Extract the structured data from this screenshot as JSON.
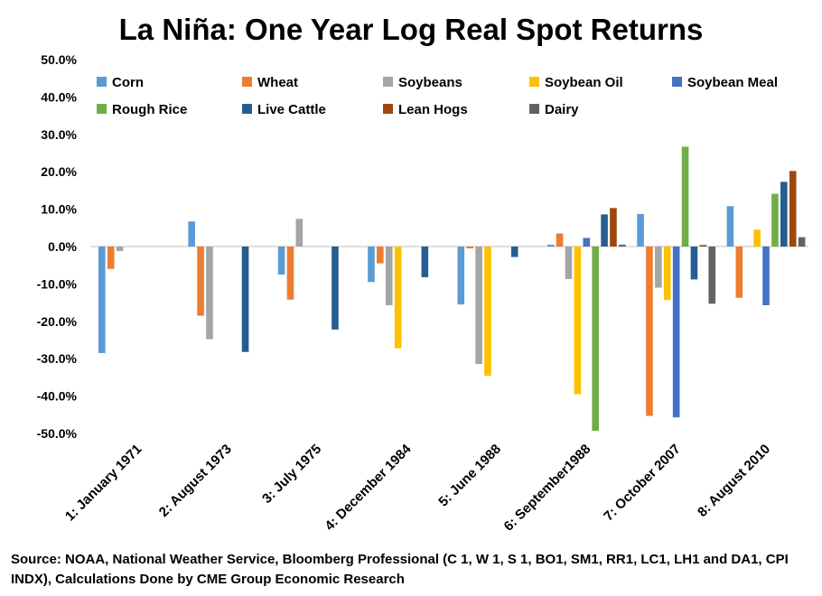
{
  "chart_data": {
    "type": "bar",
    "title": "La Niña: One Year Log Real Spot Returns",
    "categories": [
      "1: January 1971",
      "2: August 1973",
      "3: July 1975",
      "4: December 1984",
      "5: June 1988",
      "6: September1988",
      "7: October 2007",
      "8: August 2010"
    ],
    "ylim": [
      -50,
      50
    ],
    "yticks": [
      "50.0%",
      "40.0%",
      "30.0%",
      "20.0%",
      "10.0%",
      "0.0%",
      "-10.0%",
      "-20.0%",
      "-30.0%",
      "-40.0%",
      "-50.0%"
    ],
    "ytick_values": [
      50,
      40,
      30,
      20,
      10,
      0,
      -10,
      -20,
      -30,
      -40,
      -50
    ],
    "legend_position": "top",
    "series": [
      {
        "name": "Corn",
        "color": "#5B9BD5",
        "values": [
          -28.5,
          6.7,
          -7.5,
          -9.5,
          -15.5,
          0.5,
          8.7,
          10.8
        ]
      },
      {
        "name": "Wheat",
        "color": "#ED7D31",
        "values": [
          -6.0,
          -18.5,
          -14.2,
          -4.5,
          -0.5,
          3.5,
          -45.3,
          -13.7
        ]
      },
      {
        "name": "Soybeans",
        "color": "#A5A5A5",
        "values": [
          -1.2,
          -24.8,
          7.4,
          -15.7,
          -31.4,
          -8.7,
          -11.0,
          0
        ]
      },
      {
        "name": "Soybean Oil",
        "color": "#FFC000",
        "values": [
          0,
          0,
          0,
          -27.2,
          -34.6,
          -39.5,
          -14.3,
          4.5
        ]
      },
      {
        "name": "Soybean Meal",
        "color": "#4472C4",
        "values": [
          0,
          0,
          0,
          0,
          0,
          2.3,
          -45.7,
          -15.7
        ]
      },
      {
        "name": "Rough Rice",
        "color": "#70AD47",
        "values": [
          0,
          0,
          0,
          0,
          0,
          -49.3,
          26.7,
          14.1
        ]
      },
      {
        "name": "Live Cattle",
        "color": "#255E91",
        "values": [
          0,
          -28.2,
          -22.2,
          -8.2,
          -2.8,
          8.6,
          -8.8,
          17.3
        ]
      },
      {
        "name": "Lean Hogs",
        "color": "#9E480E",
        "values": [
          0,
          0,
          0,
          0,
          0,
          10.3,
          0.4,
          20.2
        ]
      },
      {
        "name": "Dairy",
        "color": "#636363",
        "values": [
          0,
          0,
          0,
          0,
          0,
          0.5,
          -15.3,
          2.5
        ]
      }
    ]
  },
  "source": "Source: NOAA, National Weather Service, Bloomberg Professional (C 1, W 1, S 1, BO1, SM1, RR1, LC1, LH1 and DA1, CPI INDX), Calculations Done by CME Group Economic Research"
}
